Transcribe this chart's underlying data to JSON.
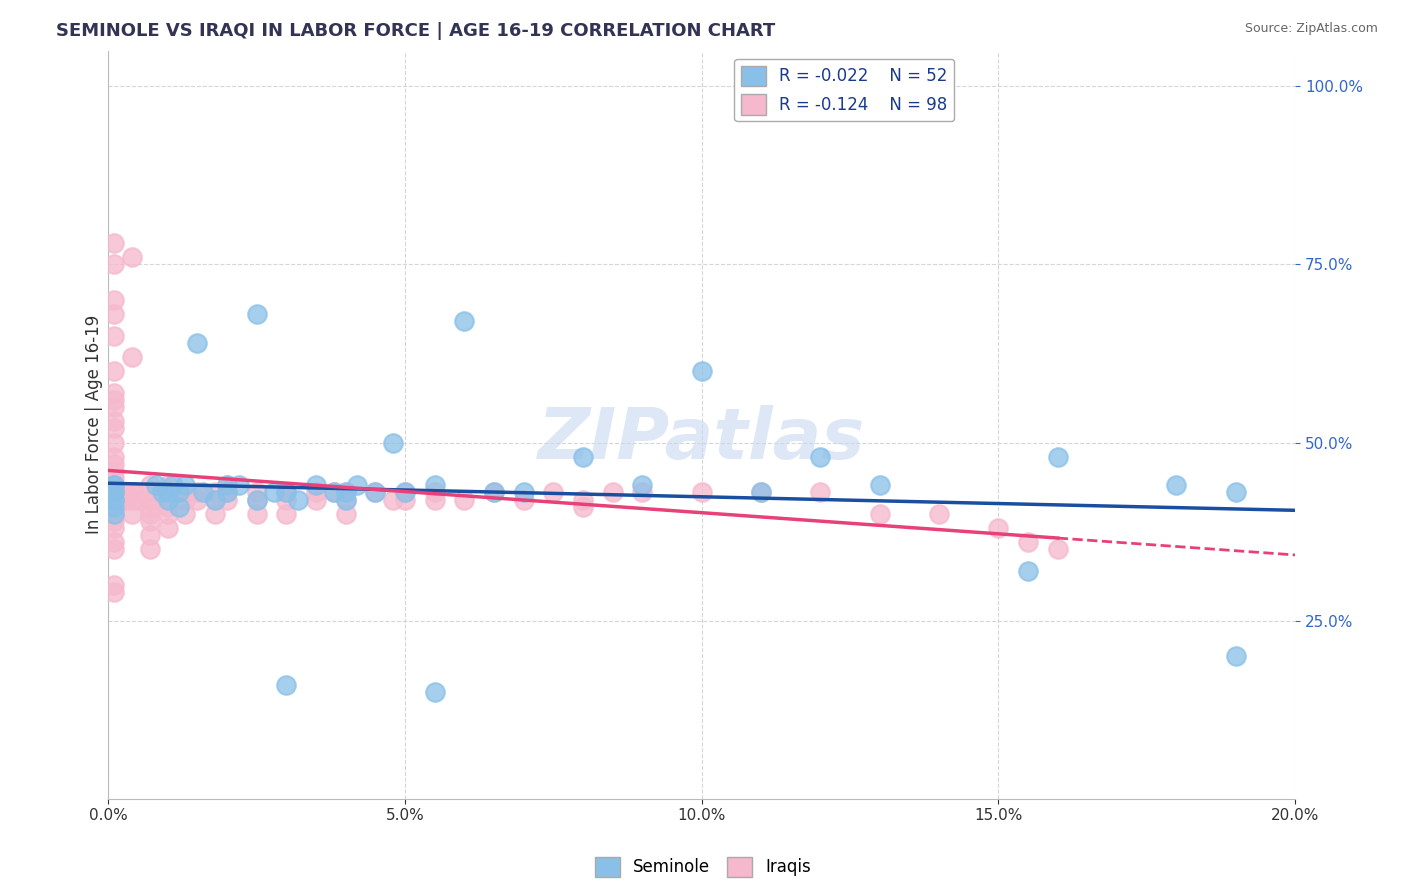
{
  "title": "SEMINOLE VS IRAQI IN LABOR FORCE | AGE 16-19 CORRELATION CHART",
  "source": "Source: ZipAtlas.com",
  "ylabel": "In Labor Force | Age 16-19",
  "xlim": [
    0.0,
    0.2
  ],
  "ylim": [
    0.0,
    1.05
  ],
  "xticks": [
    0.0,
    0.05,
    0.1,
    0.15,
    0.2
  ],
  "yticks": [
    0.25,
    0.5,
    0.75,
    1.0
  ],
  "legend_r1": "R = -0.022",
  "legend_n1": "N = 52",
  "legend_r2": "R = -0.124",
  "legend_n2": "N = 98",
  "blue_color": "#89c0e8",
  "pink_color": "#f5b8cc",
  "blue_line_color": "#1a4fa0",
  "pink_line_color": "#e8417a",
  "watermark": "ZIPatlas",
  "seminole_label": "Seminole",
  "iraqi_label": "Iraqis",
  "sem_x": [
    0.001,
    0.001,
    0.001,
    0.001,
    0.001,
    0.001,
    0.001,
    0.001,
    0.008,
    0.009,
    0.01,
    0.01,
    0.011,
    0.012,
    0.012,
    0.013,
    0.015,
    0.016,
    0.018,
    0.02,
    0.02,
    0.022,
    0.025,
    0.025,
    0.028,
    0.03,
    0.032,
    0.035,
    0.038,
    0.04,
    0.04,
    0.042,
    0.045,
    0.048,
    0.05,
    0.055,
    0.06,
    0.065,
    0.07,
    0.08,
    0.09,
    0.1,
    0.11,
    0.12,
    0.13,
    0.155,
    0.16,
    0.18,
    0.19,
    0.03,
    0.055,
    0.19
  ],
  "sem_y": [
    0.44,
    0.43,
    0.42,
    0.41,
    0.4,
    0.44,
    0.43,
    0.42,
    0.44,
    0.43,
    0.43,
    0.42,
    0.44,
    0.43,
    0.41,
    0.44,
    0.64,
    0.43,
    0.42,
    0.44,
    0.43,
    0.44,
    0.42,
    0.68,
    0.43,
    0.43,
    0.42,
    0.44,
    0.43,
    0.43,
    0.42,
    0.44,
    0.43,
    0.5,
    0.43,
    0.44,
    0.67,
    0.43,
    0.43,
    0.48,
    0.44,
    0.6,
    0.43,
    0.48,
    0.44,
    0.32,
    0.48,
    0.44,
    0.43,
    0.16,
    0.15,
    0.2
  ],
  "irq_x": [
    0.001,
    0.001,
    0.001,
    0.001,
    0.001,
    0.001,
    0.001,
    0.001,
    0.001,
    0.001,
    0.001,
    0.001,
    0.001,
    0.001,
    0.001,
    0.001,
    0.001,
    0.001,
    0.001,
    0.001,
    0.004,
    0.004,
    0.004,
    0.004,
    0.004,
    0.007,
    0.007,
    0.007,
    0.007,
    0.007,
    0.007,
    0.007,
    0.007,
    0.01,
    0.01,
    0.01,
    0.01,
    0.01,
    0.01,
    0.013,
    0.013,
    0.013,
    0.015,
    0.015,
    0.018,
    0.018,
    0.018,
    0.02,
    0.02,
    0.02,
    0.025,
    0.025,
    0.025,
    0.03,
    0.03,
    0.03,
    0.035,
    0.035,
    0.038,
    0.04,
    0.04,
    0.04,
    0.045,
    0.048,
    0.05,
    0.05,
    0.055,
    0.055,
    0.06,
    0.065,
    0.07,
    0.075,
    0.08,
    0.08,
    0.085,
    0.09,
    0.1,
    0.11,
    0.12,
    0.13,
    0.14,
    0.15,
    0.155,
    0.16,
    0.001,
    0.001,
    0.001,
    0.001,
    0.001,
    0.001,
    0.001,
    0.002,
    0.002,
    0.003,
    0.003,
    0.004,
    0.005
  ],
  "irq_y": [
    0.44,
    0.43,
    0.42,
    0.41,
    0.4,
    0.39,
    0.38,
    0.47,
    0.46,
    0.48,
    0.5,
    0.36,
    0.35,
    0.6,
    0.65,
    0.55,
    0.45,
    0.53,
    0.52,
    0.75,
    0.43,
    0.42,
    0.4,
    0.62,
    0.76,
    0.44,
    0.43,
    0.42,
    0.41,
    0.4,
    0.39,
    0.37,
    0.35,
    0.44,
    0.43,
    0.42,
    0.41,
    0.4,
    0.38,
    0.43,
    0.42,
    0.4,
    0.43,
    0.42,
    0.43,
    0.42,
    0.4,
    0.44,
    0.43,
    0.42,
    0.43,
    0.42,
    0.4,
    0.43,
    0.42,
    0.4,
    0.43,
    0.42,
    0.43,
    0.43,
    0.42,
    0.4,
    0.43,
    0.42,
    0.43,
    0.42,
    0.43,
    0.42,
    0.42,
    0.43,
    0.42,
    0.43,
    0.42,
    0.41,
    0.43,
    0.43,
    0.43,
    0.43,
    0.43,
    0.4,
    0.4,
    0.38,
    0.36,
    0.35,
    0.68,
    0.57,
    0.3,
    0.7,
    0.56,
    0.78,
    0.29,
    0.43,
    0.42,
    0.43,
    0.42,
    0.43,
    0.42
  ]
}
